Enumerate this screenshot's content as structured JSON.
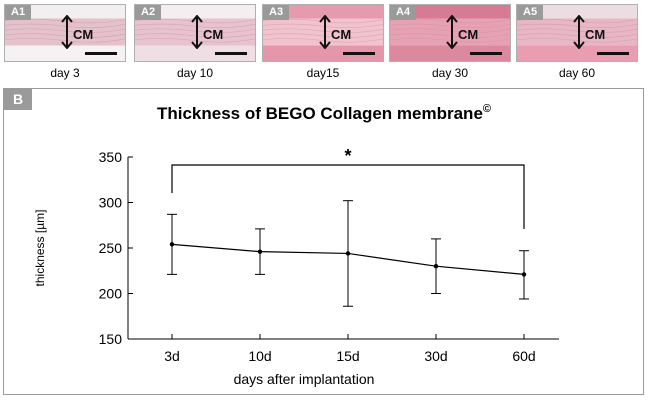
{
  "panels": [
    {
      "id": "A1",
      "label": "CM",
      "day": "day 3",
      "colors": {
        "top": "#f3eef0",
        "band": "#e3c2cc",
        "bottom": "#f6f2f3"
      }
    },
    {
      "id": "A2",
      "label": "CM",
      "day": "day 10",
      "colors": {
        "top": "#f4eef1",
        "band": "#e6c3cf",
        "bottom": "#efdfe4"
      }
    },
    {
      "id": "A3",
      "label": "CM",
      "day": "day15",
      "colors": {
        "top": "#e79aae",
        "band": "#f0c3cf",
        "bottom": "#e596ab"
      }
    },
    {
      "id": "A4",
      "label": "CM",
      "day": "day 30",
      "colors": {
        "top": "#d77a93",
        "band": "#e6a2b4",
        "bottom": "#dc889e"
      }
    },
    {
      "id": "A5",
      "label": "CM",
      "day": "day 60",
      "colors": {
        "top": "#ecdde2",
        "band": "#e8b7c5",
        "bottom": "#ea9db1"
      }
    }
  ],
  "panel_b_label": "B",
  "chart_data": {
    "type": "line",
    "title": "Thickness of BEGO Collagen membrane",
    "title_superscript": "©",
    "xlabel": "days after implantation",
    "ylabel": "thickness [µm]",
    "categories": [
      "3d",
      "10d",
      "15d",
      "30d",
      "60d"
    ],
    "series": [
      {
        "values": [
          254,
          246,
          244,
          230,
          221
        ],
        "error_low": [
          221,
          221,
          186,
          200,
          194
        ],
        "error_high": [
          287,
          271,
          302,
          260,
          247
        ]
      }
    ],
    "ylim": [
      150,
      350
    ],
    "yticks": [
      150,
      200,
      250,
      300,
      350
    ],
    "grid": false,
    "significance": {
      "from": "3d",
      "to": "60d",
      "label": "*"
    }
  }
}
